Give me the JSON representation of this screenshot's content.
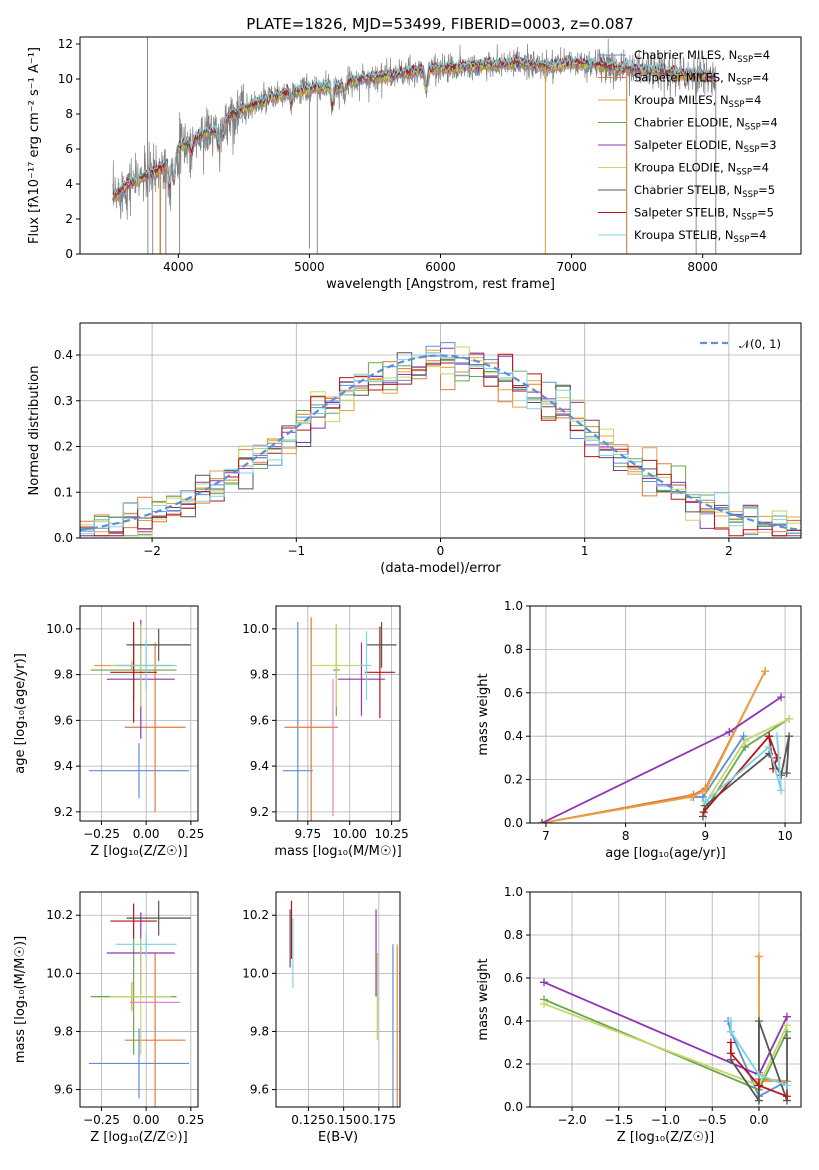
{
  "colors": {
    "Chabrier MILES": "#5b8fd9",
    "Salpeter MILES": "#e07b39",
    "Kroupa MILES": "#e8a040",
    "Chabrier ELODIE": "#6aa84f",
    "Salpeter ELODIE": "#8e35b5",
    "Kroupa ELODIE": "#c5d66a",
    "Chabrier STELIB": "#555555",
    "Salpeter STELIB": "#b5141a",
    "Kroupa STELIB": "#7dd3e0"
  },
  "chart_data": [
    {
      "id": "spectrum",
      "type": "line",
      "title": "PLATE=1826, MJD=53499, FIBERID=0003, z=0.087",
      "xlabel": "wavelength [Angstrom, rest frame]",
      "ylabel": "Flux [fλ10⁻¹⁷ erg cm⁻² s⁻¹ A⁻¹]",
      "xlim": [
        3250,
        8750
      ],
      "ylim": [
        0,
        12.4
      ],
      "xticks": [
        4000,
        5000,
        6000,
        7000,
        8000
      ],
      "yticks": [
        0,
        2,
        4,
        6,
        8,
        10,
        12
      ],
      "legend_position": "upper-right",
      "legend": [
        {
          "model": "Chabrier MILES",
          "label": "Chabrier MILES, N",
          "sub": "SSP",
          "n": "=4"
        },
        {
          "model": "Salpeter MILES",
          "label": "Salpeter MILES, N",
          "sub": "SSP",
          "n": "=4"
        },
        {
          "model": "Kroupa MILES",
          "label": "Kroupa MILES, N",
          "sub": "SSP",
          "n": "=4"
        },
        {
          "model": "Chabrier ELODIE",
          "label": "Chabrier ELODIE, N",
          "sub": "SSP",
          "n": "=4"
        },
        {
          "model": "Salpeter ELODIE",
          "label": "Salpeter ELODIE, N",
          "sub": "SSP",
          "n": "=3"
        },
        {
          "model": "Kroupa ELODIE",
          "label": "Kroupa ELODIE, N",
          "sub": "SSP",
          "n": "=4"
        },
        {
          "model": "Chabrier STELIB",
          "label": "Chabrier STELIB, N",
          "sub": "SSP",
          "n": "=5"
        },
        {
          "model": "Salpeter STELIB",
          "label": "Salpeter STELIB, N",
          "sub": "SSP",
          "n": "=5"
        },
        {
          "model": "Kroupa STELIB",
          "label": "Kroupa STELIB, N",
          "sub": "SSP",
          "n": "=4"
        }
      ],
      "data_color": "#808080",
      "continuum": {
        "x": [
          3500,
          3600,
          3700,
          3800,
          3900,
          4000,
          4100,
          4200,
          4300,
          4400,
          4500,
          4600,
          4700,
          4800,
          4900,
          5000,
          5100,
          5200,
          5300,
          5400,
          5500,
          5600,
          5800,
          6000,
          6200,
          6400,
          6600,
          6800,
          7000,
          7200,
          7400,
          7600,
          7800,
          8000,
          8100
        ],
        "y": [
          3.2,
          3.9,
          4.3,
          4.6,
          5.1,
          6.0,
          6.4,
          6.9,
          7.1,
          7.9,
          8.3,
          8.6,
          8.9,
          9.1,
          9.3,
          9.4,
          9.5,
          9.5,
          9.8,
          10.0,
          10.1,
          10.2,
          10.4,
          10.6,
          10.7,
          10.8,
          10.9,
          10.7,
          10.9,
          10.8,
          10.6,
          10.5,
          10.3,
          10.2,
          10.1
        ]
      },
      "absorption_lines": [
        {
          "x": 3933,
          "depth": 0.3
        },
        {
          "x": 3968,
          "depth": 0.25
        },
        {
          "x": 4102,
          "depth": 0.1
        },
        {
          "x": 4304,
          "depth": 0.15
        },
        {
          "x": 4340,
          "depth": 0.1
        },
        {
          "x": 4861,
          "depth": 0.08
        },
        {
          "x": 5175,
          "depth": 0.12
        },
        {
          "x": 5270,
          "depth": 0.06
        },
        {
          "x": 5890,
          "depth": 0.1
        }
      ],
      "data_spikes": [
        {
          "x": 3765,
          "y": 12.4
        },
        {
          "x": 3768,
          "y": 0
        },
        {
          "x": 3805,
          "y": 0
        },
        {
          "x": 3865,
          "y": 0
        },
        {
          "x": 3905,
          "y": 0
        },
        {
          "x": 4010,
          "y": 0
        },
        {
          "x": 5000,
          "y": 0.3
        },
        {
          "x": 5060,
          "y": 0
        },
        {
          "x": 7950,
          "y": 0
        },
        {
          "x": 8100,
          "y": 0
        }
      ],
      "model_drops": [
        {
          "x": 3860,
          "y": 0,
          "model": "Kroupa MILES"
        },
        {
          "x": 6800,
          "y": 0,
          "model": "Kroupa MILES"
        },
        {
          "x": 7420,
          "y": 0,
          "model": "Salpeter MILES"
        }
      ]
    },
    {
      "id": "residuals",
      "type": "histogram",
      "xlabel": "(data-model)/error",
      "ylabel": "Normed distribution",
      "xlim": [
        -2.5,
        2.5
      ],
      "ylim": [
        0,
        0.47
      ],
      "xticks": [
        -2,
        -1,
        0,
        1,
        2
      ],
      "xtick_labels": [
        "−2",
        "−1",
        "0",
        "1",
        "2"
      ],
      "yticks": [
        0.0,
        0.1,
        0.2,
        0.3,
        0.4
      ],
      "bin_width": 0.1,
      "legend_position": "upper-right",
      "legend": [
        {
          "label": "𝒩(0, 1)",
          "style": "dashed",
          "color": "#5b8fd9"
        }
      ]
    },
    {
      "id": "age-vs-Z",
      "type": "errorbar",
      "xlabel": "Z [log₁₀(Z/Z☉)]",
      "ylabel": "age  [log₁₀(age/yr)]",
      "xlim": [
        -0.37,
        0.29
      ],
      "ylim": [
        9.16,
        10.1
      ],
      "xticks": [
        -0.25,
        0.0,
        0.25
      ],
      "xtick_labels": [
        "−0.25",
        "0.00",
        "0.25"
      ],
      "yticks": [
        9.2,
        9.4,
        9.6,
        9.8,
        10.0
      ],
      "points": [
        {
          "model": "Chabrier MILES",
          "x": -0.04,
          "xerr": 0.28,
          "y": 9.38,
          "yerr": 0.12
        },
        {
          "model": "Salpeter MILES",
          "x": 0.05,
          "xerr": 0.17,
          "y": 9.57,
          "yerr": 0.37
        },
        {
          "model": "Kroupa MILES",
          "x": -0.08,
          "xerr": 0.21,
          "y": 9.84,
          "yerr": 0.02
        },
        {
          "model": "Chabrier ELODIE",
          "x": -0.07,
          "xerr": 0.24,
          "y": 9.82,
          "yerr": 0.13
        },
        {
          "model": "Salpeter ELODIE",
          "x": -0.03,
          "xerr": 0.19,
          "y": 9.78,
          "yerr": 0.26
        },
        {
          "model": "Kroupa ELODIE",
          "x": -0.03,
          "xerr": 0.17,
          "y": 9.84,
          "yerr": 0.18
        },
        {
          "model": "Chabrier STELIB",
          "x": 0.07,
          "xerr": 0.18,
          "y": 9.93,
          "yerr": 0.07
        },
        {
          "model": "Salpeter STELIB",
          "x": -0.07,
          "xerr": 0.13,
          "y": 9.81,
          "yerr": 0.22
        },
        {
          "model": "Kroupa STELIB",
          "x": 0.0,
          "xerr": 0.17,
          "y": 9.84,
          "yerr": 0.11
        }
      ]
    },
    {
      "id": "age-vs-mass",
      "type": "errorbar",
      "xlabel": "mass [log₁₀(M/M☉)]",
      "ylabel": "",
      "xlim": [
        9.56,
        10.3
      ],
      "ylim": [
        9.16,
        10.1
      ],
      "xticks": [
        9.75,
        10.0,
        10.25
      ],
      "xtick_labels": [
        "9.75",
        "10.00",
        "10.25"
      ],
      "yticks": [
        9.2,
        9.4,
        9.6,
        9.8,
        10.0
      ],
      "points": [
        {
          "model": "Chabrier MILES",
          "x": 9.69,
          "xerr": 0.09,
          "y": 9.38,
          "yerr": 0.65
        },
        {
          "model": "Salpeter MILES",
          "x": 9.77,
          "xerr": 0.16,
          "y": 9.57,
          "yerr": 0.48
        },
        {
          "model": "Kroupa MILES",
          "x": 9.92,
          "xerr": 0.02,
          "y": 9.84,
          "yerr": 0.05
        },
        {
          "model": "Chabrier ELODIE",
          "x": 9.92,
          "xerr": 0.02,
          "y": 9.82,
          "yerr": 0.2
        },
        {
          "model": "Salpeter ELODIE",
          "x": 10.07,
          "xerr": 0.14,
          "y": 9.78,
          "yerr": 0.16
        },
        {
          "model": "Kroupa ELODIE",
          "x": 9.92,
          "xerr": 0.15,
          "y": 9.84,
          "yerr": 0.18
        },
        {
          "model": "Chabrier STELIB",
          "x": 10.19,
          "xerr": 0.09,
          "y": 9.93,
          "yerr": 0.1
        },
        {
          "model": "Salpeter STELIB",
          "x": 10.18,
          "xerr": 0.09,
          "y": 9.81,
          "yerr": 0.2
        },
        {
          "model": "Kroupa STELIB",
          "x": 10.1,
          "xerr": 0.03,
          "y": 9.84,
          "yerr": 0.15
        },
        {
          "model": "extra",
          "color": "#ee82c6",
          "x": 9.9,
          "xerr": 0.0,
          "y": 9.48,
          "yerr": 0.3
        }
      ]
    },
    {
      "id": "weight-vs-age",
      "type": "line",
      "xlabel": "age  [log₁₀(age/yr)]",
      "ylabel": "mass weight",
      "xlim": [
        6.8,
        10.2
      ],
      "ylim": [
        0,
        1.0
      ],
      "xticks": [
        7,
        8,
        9,
        10
      ],
      "yticks": [
        0.0,
        0.2,
        0.4,
        0.6,
        0.8,
        1.0
      ],
      "series": [
        {
          "model": "Chabrier MILES",
          "x": [
            8.85,
            8.97,
            9.48
          ],
          "y": [
            0.12,
            0.12,
            0.4
          ]
        },
        {
          "model": "Salpeter MILES",
          "x": [
            6.95,
            8.85,
            9.0,
            9.75
          ],
          "y": [
            0.0,
            0.13,
            0.16,
            0.7
          ]
        },
        {
          "model": "Kroupa MILES",
          "x": [
            6.95,
            8.82,
            9.0,
            9.75
          ],
          "y": [
            0.0,
            0.12,
            0.15,
            0.7
          ]
        },
        {
          "model": "Chabrier ELODIE",
          "x": [
            8.98,
            9.5,
            10.05
          ],
          "y": [
            0.05,
            0.35,
            0.48
          ]
        },
        {
          "model": "Salpeter ELODIE",
          "x": [
            6.95,
            9.3,
            9.95
          ],
          "y": [
            0.0,
            0.42,
            0.58
          ]
        },
        {
          "model": "Kroupa ELODIE",
          "x": [
            8.98,
            9.5,
            10.05
          ],
          "y": [
            0.08,
            0.38,
            0.48
          ]
        },
        {
          "model": "Chabrier STELIB",
          "x": [
            8.97,
            9.0,
            9.8,
            9.95,
            10.05,
            10.02
          ],
          "y": [
            0.03,
            0.08,
            0.32,
            0.22,
            0.4,
            0.23
          ]
        },
        {
          "model": "Salpeter STELIB",
          "x": [
            8.98,
            9.8,
            9.85,
            9.9,
            9.8
          ],
          "y": [
            0.05,
            0.4,
            0.25,
            0.3,
            0.4
          ]
        },
        {
          "model": "Kroupa STELIB",
          "x": [
            9.0,
            9.8,
            9.95,
            9.9
          ],
          "y": [
            0.1,
            0.35,
            0.15,
            0.4
          ]
        }
      ]
    },
    {
      "id": "mass-vs-Z",
      "type": "errorbar",
      "xlabel": "Z [log₁₀(Z/Z☉)]",
      "ylabel": "mass [log₁₀(M/M☉)]",
      "xlim": [
        -0.37,
        0.29
      ],
      "ylim": [
        9.54,
        10.28
      ],
      "xticks": [
        -0.25,
        0.0,
        0.25
      ],
      "xtick_labels": [
        "−0.25",
        "0.00",
        "0.25"
      ],
      "yticks": [
        9.6,
        9.8,
        10.0,
        10.2
      ],
      "points": [
        {
          "model": "Chabrier MILES",
          "x": -0.04,
          "xerr": 0.28,
          "y": 9.69,
          "yerr": 0.12
        },
        {
          "model": "Salpeter MILES",
          "x": 0.05,
          "xerr": 0.17,
          "y": 9.77,
          "yerr": 0.3
        },
        {
          "model": "Kroupa MILES",
          "x": -0.08,
          "xerr": 0.21,
          "y": 9.92,
          "yerr": 0.05
        },
        {
          "model": "Chabrier ELODIE",
          "x": -0.07,
          "xerr": 0.24,
          "y": 9.92,
          "yerr": 0.2
        },
        {
          "model": "Salpeter ELODIE",
          "x": -0.03,
          "xerr": 0.19,
          "y": 10.07,
          "yerr": 0.14
        },
        {
          "model": "Kroupa ELODIE",
          "x": -0.03,
          "xerr": 0.17,
          "y": 9.92,
          "yerr": 0.2
        },
        {
          "model": "Chabrier STELIB",
          "x": 0.07,
          "xerr": 0.18,
          "y": 10.19,
          "yerr": 0.06
        },
        {
          "model": "Salpeter STELIB",
          "x": -0.07,
          "xerr": 0.13,
          "y": 10.18,
          "yerr": 0.06
        },
        {
          "model": "Kroupa STELIB",
          "x": 0.0,
          "xerr": 0.17,
          "y": 10.1,
          "yerr": 0.04
        },
        {
          "model": "extra",
          "color": "#ee82c6",
          "x": 0.05,
          "xerr": 0.14,
          "y": 9.9,
          "yerr": 0.0
        }
      ]
    },
    {
      "id": "mass-vs-EBV",
      "type": "errorbar",
      "xlabel": "E(B-V)",
      "ylabel": "",
      "xlim": [
        0.102,
        0.19
      ],
      "ylim": [
        9.54,
        10.28
      ],
      "xticks": [
        0.125,
        0.15,
        0.175
      ],
      "xtick_labels": [
        "0.125",
        "0.150",
        "0.175"
      ],
      "yticks": [
        9.6,
        9.8,
        10.0,
        10.2
      ],
      "points": [
        {
          "model": "Chabrier MILES",
          "x": 0.185,
          "xerr": 0.0,
          "y": 9.69,
          "yerr": 0.41
        },
        {
          "model": "Salpeter MILES",
          "x": 0.188,
          "xerr": 0.0,
          "y": 9.77,
          "yerr": 0.32
        },
        {
          "model": "Kroupa MILES",
          "x": 0.188,
          "xerr": 0.0,
          "y": 9.92,
          "yerr": 0.18
        },
        {
          "model": "Chabrier ELODIE",
          "x": 0.174,
          "xerr": 0.0,
          "y": 9.92,
          "yerr": 0.15
        },
        {
          "model": "Salpeter ELODIE",
          "x": 0.173,
          "xerr": 0.0,
          "y": 10.07,
          "yerr": 0.15
        },
        {
          "model": "Kroupa ELODIE",
          "x": 0.174,
          "xerr": 0.0,
          "y": 9.92,
          "yerr": 0.15
        },
        {
          "model": "Chabrier STELIB",
          "x": 0.112,
          "xerr": 0.0,
          "y": 10.12,
          "yerr": 0.1
        },
        {
          "model": "Salpeter STELIB",
          "x": 0.113,
          "xerr": 0.0,
          "y": 10.15,
          "yerr": 0.1
        },
        {
          "model": "Kroupa STELIB",
          "x": 0.114,
          "xerr": 0.0,
          "y": 10.07,
          "yerr": 0.12
        }
      ]
    },
    {
      "id": "weight-vs-Z",
      "type": "line",
      "xlabel": "Z [log₁₀(Z/Z☉)]",
      "ylabel": "mass weight",
      "xlim": [
        -2.45,
        0.45
      ],
      "ylim": [
        0,
        1.0
      ],
      "xticks": [
        -2.0,
        -1.5,
        -1.0,
        -0.5,
        0.0
      ],
      "xtick_labels": [
        "−2.0",
        "−1.5",
        "−1.0",
        "−0.5",
        "0.0"
      ],
      "yticks": [
        0.0,
        0.2,
        0.4,
        0.6,
        0.8,
        1.0
      ],
      "series": [
        {
          "model": "Chabrier MILES",
          "x": [
            -0.33,
            -0.3,
            0.0,
            0.3
          ],
          "y": [
            0.4,
            0.35,
            0.05,
            0.12
          ]
        },
        {
          "model": "Salpeter MILES",
          "x": [
            0.0,
            0.0,
            0.0,
            0.3
          ],
          "y": [
            0.7,
            0.16,
            0.13,
            0.12
          ]
        },
        {
          "model": "Kroupa MILES",
          "x": [
            0.0,
            0.0,
            0.0,
            0.3
          ],
          "y": [
            0.7,
            0.15,
            0.12,
            0.12
          ]
        },
        {
          "model": "Chabrier ELODIE",
          "x": [
            -2.3,
            0.0,
            0.3
          ],
          "y": [
            0.5,
            0.08,
            0.35
          ]
        },
        {
          "model": "Salpeter ELODIE",
          "x": [
            -2.3,
            0.0,
            0.3
          ],
          "y": [
            0.58,
            0.15,
            0.42
          ]
        },
        {
          "model": "Kroupa ELODIE",
          "x": [
            -2.3,
            0.0,
            0.3
          ],
          "y": [
            0.48,
            0.1,
            0.38
          ]
        },
        {
          "model": "Chabrier STELIB",
          "x": [
            -0.3,
            0.0,
            0.0,
            0.3,
            0.3
          ],
          "y": [
            0.22,
            0.03,
            0.4,
            0.03,
            0.32
          ]
        },
        {
          "model": "Salpeter STELIB",
          "x": [
            -0.3,
            -0.3,
            0.0,
            0.3
          ],
          "y": [
            0.3,
            0.25,
            0.1,
            0.05
          ]
        },
        {
          "model": "Kroupa STELIB",
          "x": [
            -0.3,
            -0.3,
            0.0,
            0.3
          ],
          "y": [
            0.4,
            0.35,
            0.15,
            0.1
          ]
        }
      ]
    }
  ]
}
